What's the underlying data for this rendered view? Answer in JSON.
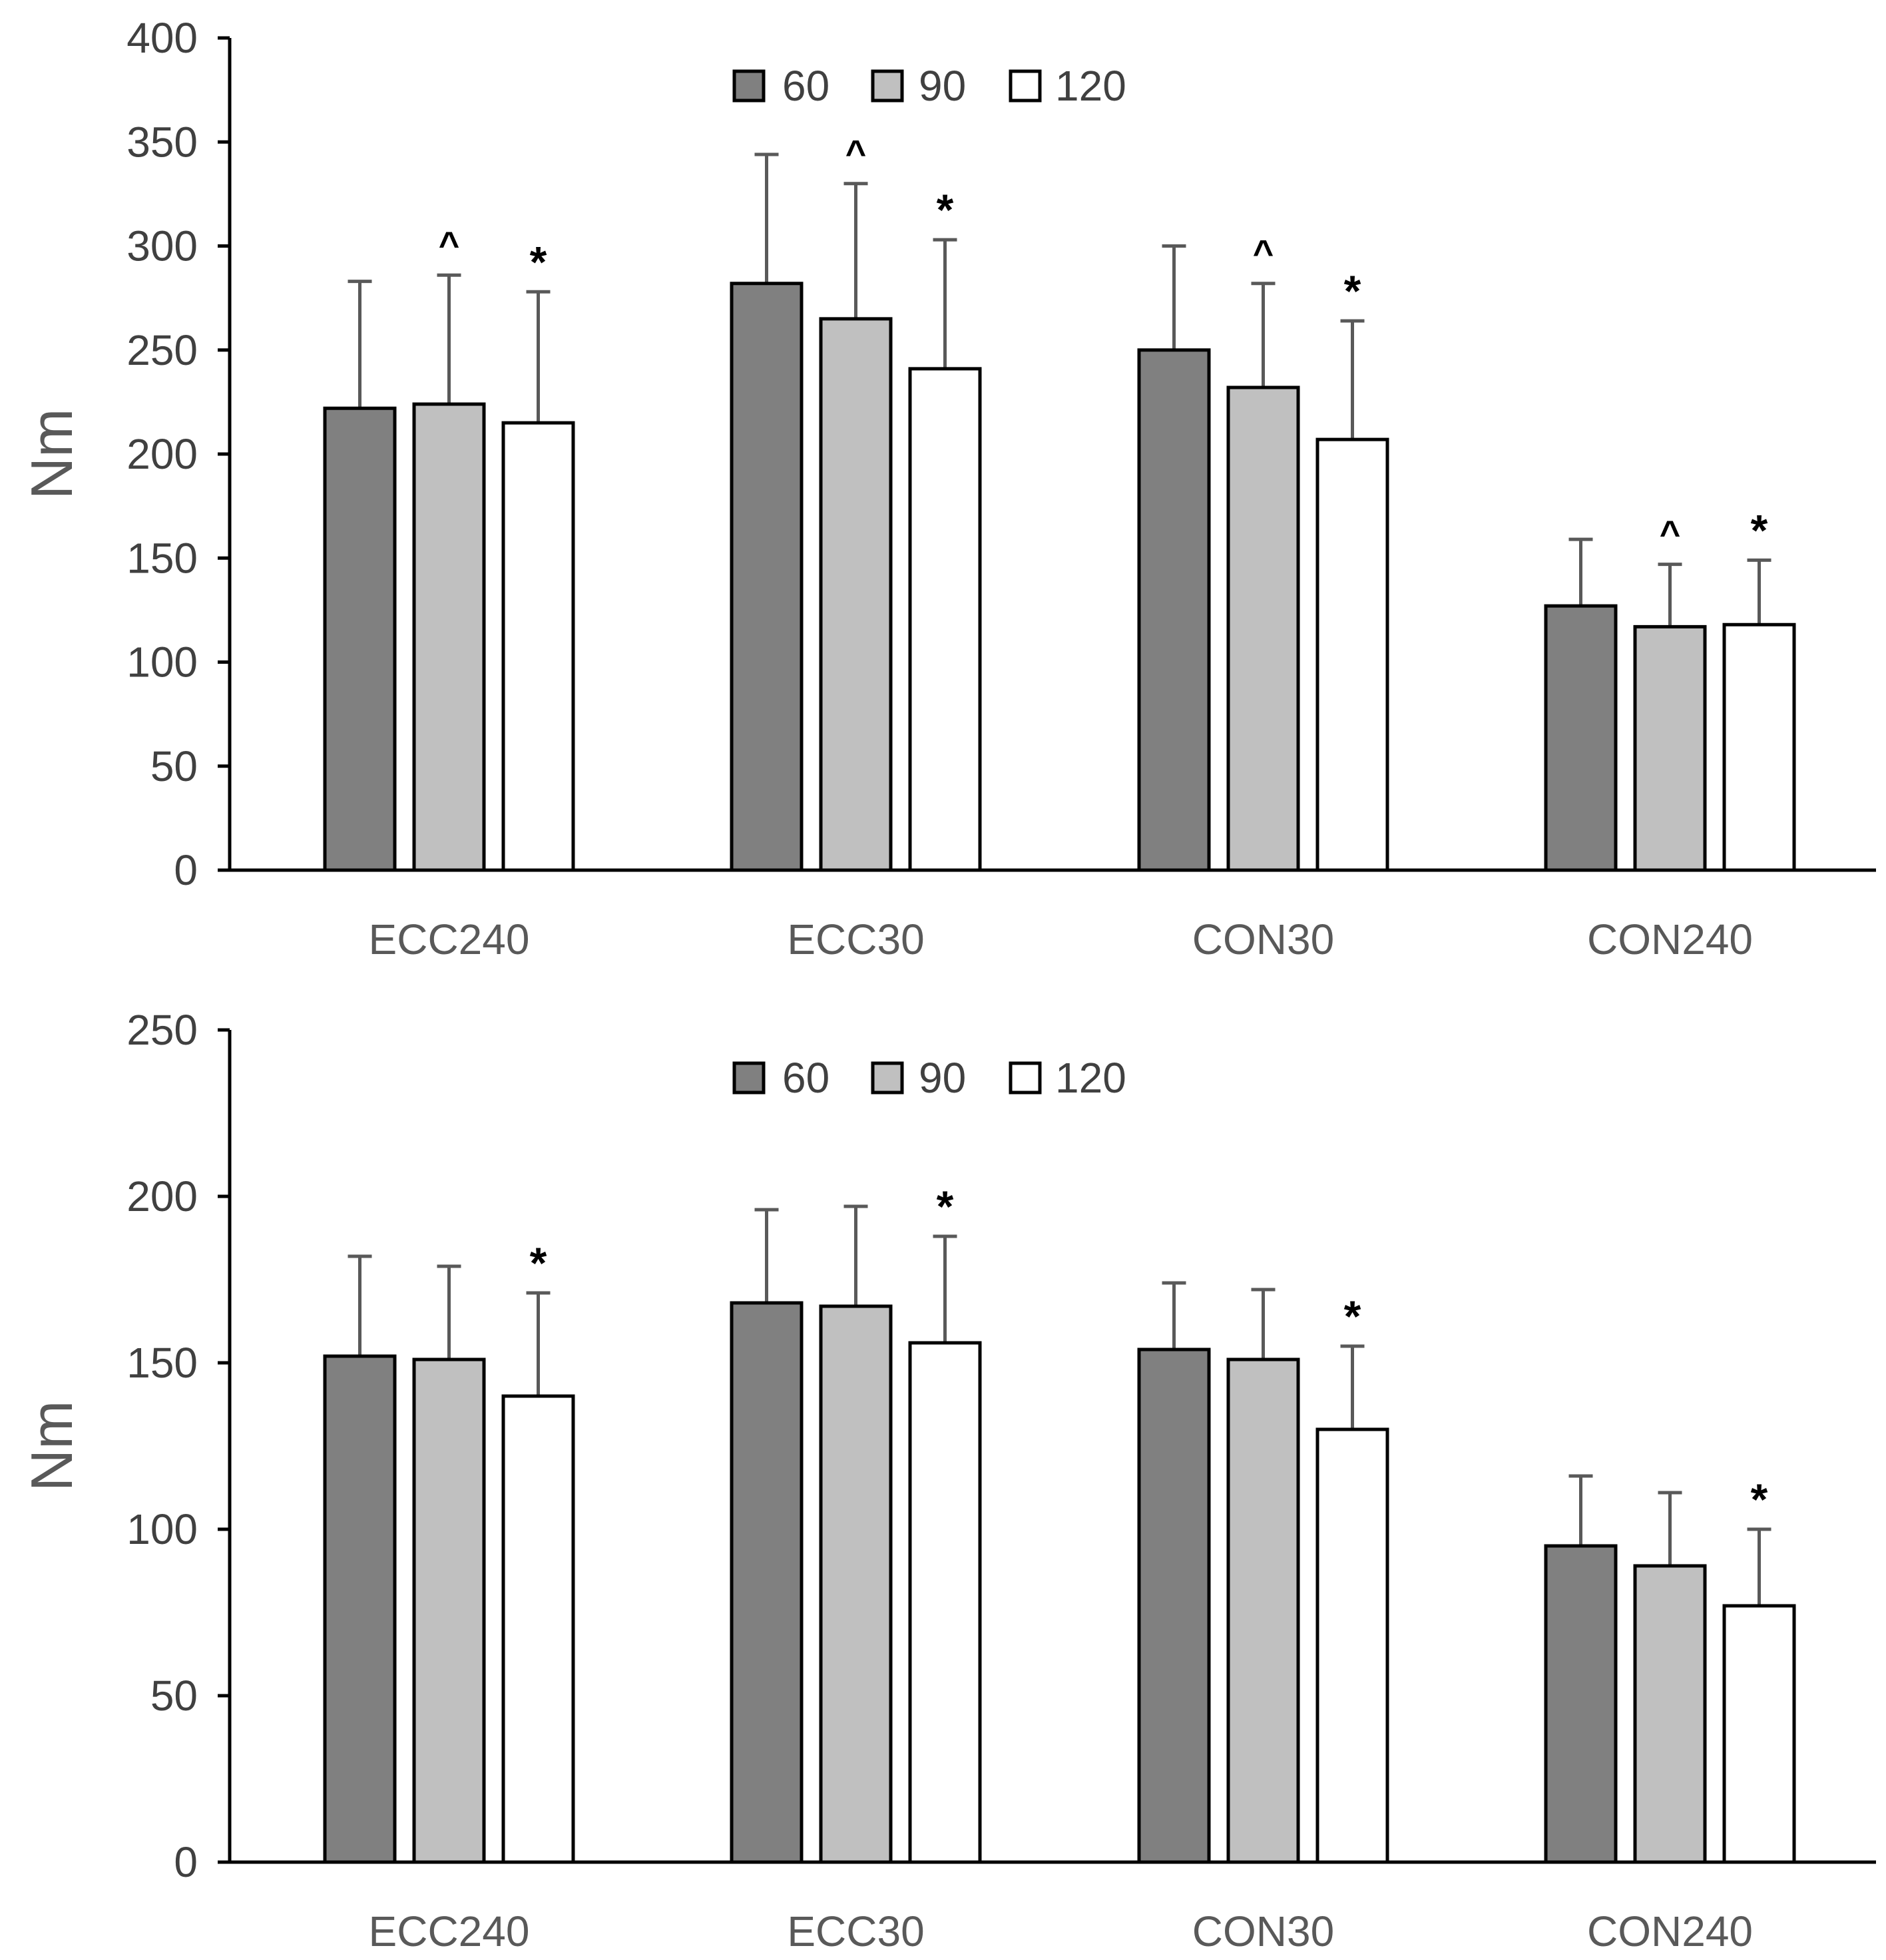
{
  "chart_data": [
    {
      "type": "bar",
      "title": "",
      "xlabel": "",
      "ylabel": "Nm",
      "ylim": [
        0,
        400
      ],
      "yticks": [
        0,
        50,
        100,
        150,
        200,
        250,
        300,
        350,
        400
      ],
      "ytick_labels": [
        "0",
        "50",
        "100",
        "150",
        "200",
        "250",
        "300",
        "350",
        "400"
      ],
      "grid": false,
      "legend_position": "top-center",
      "categories": [
        "ECC240",
        "ECC30",
        "CON30",
        "CON240"
      ],
      "series": [
        {
          "name": "60",
          "values": [
            222,
            282,
            250,
            127
          ],
          "errors": [
            61,
            62,
            50,
            32
          ],
          "color": "#808080"
        },
        {
          "name": "90",
          "values": [
            224,
            265,
            232,
            117
          ],
          "errors": [
            62,
            65,
            50,
            30
          ],
          "color": "#c0c0c0"
        },
        {
          "name": "120",
          "values": [
            215,
            241,
            207,
            118
          ],
          "errors": [
            63,
            62,
            57,
            31
          ],
          "color": "#ffffff"
        }
      ],
      "annotations": [
        {
          "category": "ECC240",
          "series": "90",
          "text": "^"
        },
        {
          "category": "ECC240",
          "series": "120",
          "text": "*"
        },
        {
          "category": "ECC30",
          "series": "90",
          "text": "^"
        },
        {
          "category": "ECC30",
          "series": "120",
          "text": "*"
        },
        {
          "category": "CON30",
          "series": "90",
          "text": "^"
        },
        {
          "category": "CON30",
          "series": "120",
          "text": "*"
        },
        {
          "category": "CON240",
          "series": "90",
          "text": "^"
        },
        {
          "category": "CON240",
          "series": "120",
          "text": "*"
        }
      ]
    },
    {
      "type": "bar",
      "title": "",
      "xlabel": "",
      "ylabel": "Nm",
      "ylim": [
        0,
        250
      ],
      "yticks": [
        0,
        50,
        100,
        150,
        200,
        250
      ],
      "ytick_labels": [
        "0",
        "50",
        "100",
        "150",
        "200",
        "250"
      ],
      "grid": false,
      "legend_position": "top-center",
      "categories": [
        "ECC240",
        "ECC30",
        "CON30",
        "CON240"
      ],
      "series": [
        {
          "name": "60",
          "values": [
            152,
            168,
            154,
            95
          ],
          "errors": [
            30,
            28,
            20,
            21
          ],
          "color": "#808080"
        },
        {
          "name": "90",
          "values": [
            151,
            167,
            151,
            89
          ],
          "errors": [
            28,
            30,
            21,
            22
          ],
          "color": "#c0c0c0"
        },
        {
          "name": "120",
          "values": [
            140,
            156,
            130,
            77
          ],
          "errors": [
            31,
            32,
            25,
            23
          ],
          "color": "#ffffff"
        }
      ],
      "annotations": [
        {
          "category": "ECC240",
          "series": "120",
          "text": "*"
        },
        {
          "category": "ECC30",
          "series": "120",
          "text": "*"
        },
        {
          "category": "CON30",
          "series": "120",
          "text": "*"
        },
        {
          "category": "CON240",
          "series": "120",
          "text": "*"
        }
      ]
    }
  ]
}
